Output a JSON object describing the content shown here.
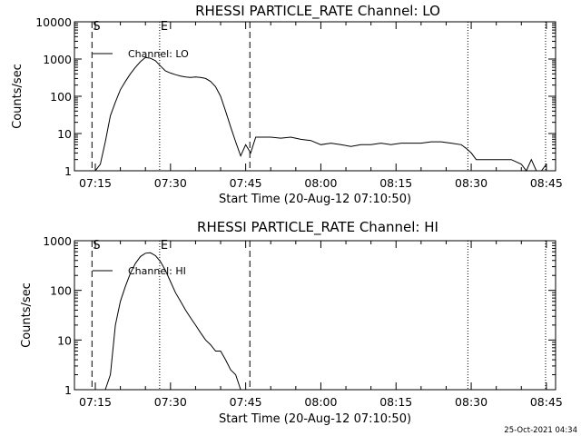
{
  "footer": {
    "timestamp": "25-Oct-2021 04:34"
  },
  "chart_data": [
    {
      "type": "line",
      "title": "RHESSI PARTICLE_RATE Channel: LO",
      "xlabel": "Start Time (20-Aug-12 07:10:50)",
      "ylabel": "Counts/sec",
      "yscale": "log",
      "ylim": [
        1,
        10000
      ],
      "xlim_minutes": [
        0,
        96
      ],
      "x_tick_labels": [
        "07:15",
        "07:30",
        "07:45",
        "08:00",
        "08:15",
        "08:30",
        "08:45"
      ],
      "y_tick_labels": [
        "1",
        "10",
        "100",
        "1000",
        "10000"
      ],
      "legend": "Channel: LO",
      "markers": [
        {
          "label": "S",
          "style": "dashed"
        },
        {
          "label": "",
          "style": "dashed"
        },
        {
          "label": "E",
          "style": "dotted"
        },
        {
          "label": "",
          "style": "dotted"
        },
        {
          "label": "",
          "style": "dotted"
        }
      ],
      "series": [
        {
          "x": [
            "07:11",
            "07:12",
            "07:13",
            "07:14",
            "07:15",
            "07:16",
            "07:17",
            "07:18",
            "07:19",
            "07:20",
            "07:21",
            "07:22",
            "07:23",
            "07:24",
            "07:25",
            "07:26",
            "07:27",
            "07:28",
            "07:29",
            "07:30",
            "07:31",
            "07:32",
            "07:33",
            "07:34",
            "07:35",
            "07:36",
            "07:37",
            "07:38",
            "07:39",
            "07:40",
            "07:41",
            "07:42",
            "07:43",
            "07:44",
            "07:45",
            "07:46",
            "07:47",
            "07:48",
            "07:50",
            "07:52",
            "07:54",
            "07:56",
            "07:58",
            "08:00",
            "08:02",
            "08:04",
            "08:06",
            "08:08",
            "08:10",
            "08:12",
            "08:14",
            "08:16",
            "08:18",
            "08:20",
            "08:22",
            "08:24",
            "08:26",
            "08:28",
            "08:29",
            "08:30",
            "08:31",
            "08:32",
            "08:33",
            "08:34",
            "08:36",
            "08:38",
            "08:40",
            "08:41",
            "08:42",
            "08:43",
            "08:44",
            "08:45"
          ],
          "values": [
            1,
            1,
            1,
            1,
            1,
            1.5,
            6,
            30,
            70,
            150,
            250,
            400,
            600,
            850,
            1100,
            1050,
            900,
            650,
            480,
            420,
            380,
            350,
            330,
            320,
            330,
            320,
            300,
            250,
            180,
            100,
            40,
            15,
            6,
            2.5,
            5,
            3,
            8,
            8,
            8,
            7.5,
            8,
            7,
            6.5,
            5,
            5.5,
            5,
            4.5,
            5,
            5,
            5.5,
            5,
            5.5,
            5.5,
            5.5,
            6,
            6,
            5.5,
            5,
            4,
            3,
            2,
            2,
            2,
            2,
            2,
            2,
            1.5,
            1,
            2,
            1,
            1,
            1.5
          ]
        }
      ]
    },
    {
      "type": "line",
      "title": "RHESSI PARTICLE_RATE Channel: HI",
      "xlabel": "Start Time (20-Aug-12 07:10:50)",
      "ylabel": "Counts/sec",
      "yscale": "log",
      "ylim": [
        1,
        1000
      ],
      "xlim_minutes": [
        0,
        96
      ],
      "x_tick_labels": [
        "07:15",
        "07:30",
        "07:45",
        "08:00",
        "08:15",
        "08:30",
        "08:45"
      ],
      "y_tick_labels": [
        "1",
        "10",
        "100",
        "1000"
      ],
      "legend": "Channel: HI",
      "markers": [
        {
          "label": "S",
          "style": "dashed"
        },
        {
          "label": "",
          "style": "dashed"
        },
        {
          "label": "E",
          "style": "dotted"
        },
        {
          "label": "",
          "style": "dotted"
        },
        {
          "label": "",
          "style": "dotted"
        }
      ],
      "series": [
        {
          "x": [
            "07:17",
            "07:18",
            "07:19",
            "07:20",
            "07:21",
            "07:22",
            "07:23",
            "07:24",
            "07:25",
            "07:26",
            "07:27",
            "07:28",
            "07:29",
            "07:30",
            "07:31",
            "07:32",
            "07:33",
            "07:34",
            "07:35",
            "07:36",
            "07:37",
            "07:38",
            "07:39",
            "07:40",
            "07:41",
            "07:42",
            "07:43",
            "07:44"
          ],
          "values": [
            1,
            2,
            20,
            60,
            120,
            220,
            350,
            480,
            560,
            570,
            500,
            380,
            250,
            150,
            90,
            60,
            40,
            28,
            20,
            14,
            10,
            8,
            6,
            6,
            4,
            2.5,
            2,
            1
          ]
        }
      ]
    }
  ]
}
